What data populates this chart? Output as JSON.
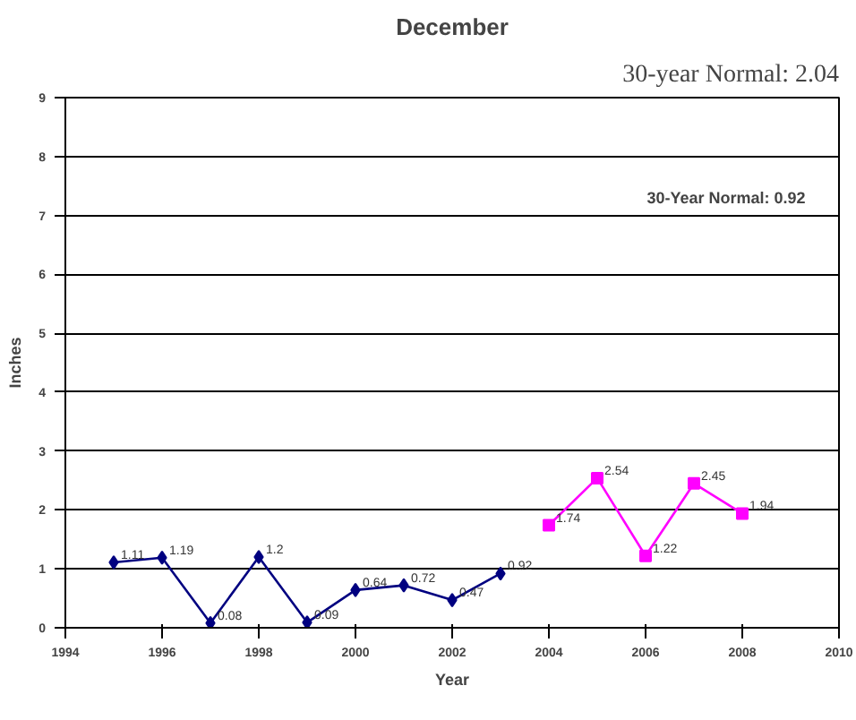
{
  "chart_data": {
    "type": "line",
    "title": "December",
    "xlabel": "Year",
    "ylabel": "Inches",
    "annotations": [
      "30-year Normal: 2.04",
      "30-Year Normal:  0.92"
    ],
    "series": [
      {
        "x": [
          1995,
          1996,
          1997,
          1998,
          1999,
          2000,
          2001,
          2002,
          2003
        ],
        "values": [
          1.11,
          1.19,
          0.08,
          1.2,
          0.09,
          0.64,
          0.72,
          0.47,
          0.92
        ],
        "color": "#000080",
        "marker": "diamond"
      },
      {
        "x": [
          2004,
          2005,
          2006,
          2007,
          2008
        ],
        "values": [
          1.74,
          2.54,
          1.22,
          2.45,
          1.94
        ],
        "color": "#ff00ff",
        "marker": "square"
      }
    ],
    "xlim": [
      1994,
      2010
    ],
    "xticks": [
      1994,
      1996,
      1998,
      2000,
      2002,
      2004,
      2006,
      2008,
      2010
    ],
    "ylim": [
      0,
      9
    ],
    "yticks": [
      0,
      1,
      2,
      3,
      4,
      5,
      6,
      7,
      8,
      9
    ],
    "grid": "y",
    "data_labels": true,
    "line_style": "solid"
  }
}
